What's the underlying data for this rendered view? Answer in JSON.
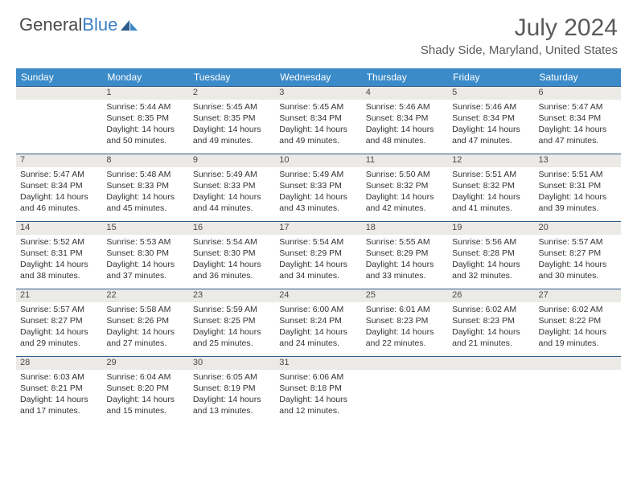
{
  "logo": {
    "word1": "General",
    "word2": "Blue"
  },
  "title": "July 2024",
  "location": "Shady Side, Maryland, United States",
  "colors": {
    "header_bg": "#3b8bc9",
    "header_text": "#ffffff",
    "daynum_bg": "#eceae6",
    "border": "#2d5a8a",
    "text": "#333333",
    "title_text": "#5a5a5a",
    "logo_gray": "#4a4a4a",
    "logo_blue": "#3b7fc4"
  },
  "day_headers": [
    "Sunday",
    "Monday",
    "Tuesday",
    "Wednesday",
    "Thursday",
    "Friday",
    "Saturday"
  ],
  "weeks": [
    [
      null,
      {
        "n": "1",
        "sr": "5:44 AM",
        "ss": "8:35 PM",
        "dl": "14 hours and 50 minutes."
      },
      {
        "n": "2",
        "sr": "5:45 AM",
        "ss": "8:35 PM",
        "dl": "14 hours and 49 minutes."
      },
      {
        "n": "3",
        "sr": "5:45 AM",
        "ss": "8:34 PM",
        "dl": "14 hours and 49 minutes."
      },
      {
        "n": "4",
        "sr": "5:46 AM",
        "ss": "8:34 PM",
        "dl": "14 hours and 48 minutes."
      },
      {
        "n": "5",
        "sr": "5:46 AM",
        "ss": "8:34 PM",
        "dl": "14 hours and 47 minutes."
      },
      {
        "n": "6",
        "sr": "5:47 AM",
        "ss": "8:34 PM",
        "dl": "14 hours and 47 minutes."
      }
    ],
    [
      {
        "n": "7",
        "sr": "5:47 AM",
        "ss": "8:34 PM",
        "dl": "14 hours and 46 minutes."
      },
      {
        "n": "8",
        "sr": "5:48 AM",
        "ss": "8:33 PM",
        "dl": "14 hours and 45 minutes."
      },
      {
        "n": "9",
        "sr": "5:49 AM",
        "ss": "8:33 PM",
        "dl": "14 hours and 44 minutes."
      },
      {
        "n": "10",
        "sr": "5:49 AM",
        "ss": "8:33 PM",
        "dl": "14 hours and 43 minutes."
      },
      {
        "n": "11",
        "sr": "5:50 AM",
        "ss": "8:32 PM",
        "dl": "14 hours and 42 minutes."
      },
      {
        "n": "12",
        "sr": "5:51 AM",
        "ss": "8:32 PM",
        "dl": "14 hours and 41 minutes."
      },
      {
        "n": "13",
        "sr": "5:51 AM",
        "ss": "8:31 PM",
        "dl": "14 hours and 39 minutes."
      }
    ],
    [
      {
        "n": "14",
        "sr": "5:52 AM",
        "ss": "8:31 PM",
        "dl": "14 hours and 38 minutes."
      },
      {
        "n": "15",
        "sr": "5:53 AM",
        "ss": "8:30 PM",
        "dl": "14 hours and 37 minutes."
      },
      {
        "n": "16",
        "sr": "5:54 AM",
        "ss": "8:30 PM",
        "dl": "14 hours and 36 minutes."
      },
      {
        "n": "17",
        "sr": "5:54 AM",
        "ss": "8:29 PM",
        "dl": "14 hours and 34 minutes."
      },
      {
        "n": "18",
        "sr": "5:55 AM",
        "ss": "8:29 PM",
        "dl": "14 hours and 33 minutes."
      },
      {
        "n": "19",
        "sr": "5:56 AM",
        "ss": "8:28 PM",
        "dl": "14 hours and 32 minutes."
      },
      {
        "n": "20",
        "sr": "5:57 AM",
        "ss": "8:27 PM",
        "dl": "14 hours and 30 minutes."
      }
    ],
    [
      {
        "n": "21",
        "sr": "5:57 AM",
        "ss": "8:27 PM",
        "dl": "14 hours and 29 minutes."
      },
      {
        "n": "22",
        "sr": "5:58 AM",
        "ss": "8:26 PM",
        "dl": "14 hours and 27 minutes."
      },
      {
        "n": "23",
        "sr": "5:59 AM",
        "ss": "8:25 PM",
        "dl": "14 hours and 25 minutes."
      },
      {
        "n": "24",
        "sr": "6:00 AM",
        "ss": "8:24 PM",
        "dl": "14 hours and 24 minutes."
      },
      {
        "n": "25",
        "sr": "6:01 AM",
        "ss": "8:23 PM",
        "dl": "14 hours and 22 minutes."
      },
      {
        "n": "26",
        "sr": "6:02 AM",
        "ss": "8:23 PM",
        "dl": "14 hours and 21 minutes."
      },
      {
        "n": "27",
        "sr": "6:02 AM",
        "ss": "8:22 PM",
        "dl": "14 hours and 19 minutes."
      }
    ],
    [
      {
        "n": "28",
        "sr": "6:03 AM",
        "ss": "8:21 PM",
        "dl": "14 hours and 17 minutes."
      },
      {
        "n": "29",
        "sr": "6:04 AM",
        "ss": "8:20 PM",
        "dl": "14 hours and 15 minutes."
      },
      {
        "n": "30",
        "sr": "6:05 AM",
        "ss": "8:19 PM",
        "dl": "14 hours and 13 minutes."
      },
      {
        "n": "31",
        "sr": "6:06 AM",
        "ss": "8:18 PM",
        "dl": "14 hours and 12 minutes."
      },
      null,
      null,
      null
    ]
  ],
  "labels": {
    "sunrise": "Sunrise:",
    "sunset": "Sunset:",
    "daylight": "Daylight:"
  }
}
